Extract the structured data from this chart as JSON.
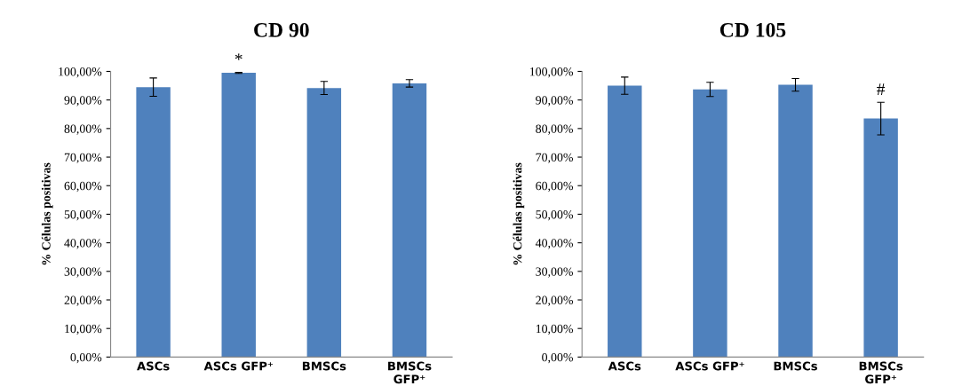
{
  "chart_data": [
    {
      "type": "bar",
      "title": "CD 90",
      "ylabel": "% Células positivas",
      "categories": [
        "ASCs",
        "ASCs GFP⁺",
        "BMSCs",
        "BMSCs\nGFP⁺"
      ],
      "values": [
        94.5,
        99.5,
        94.2,
        95.8
      ],
      "errors": [
        3.2,
        0.2,
        2.3,
        1.3
      ],
      "color": "#4f81bd",
      "ylim": [
        0,
        100
      ],
      "yticks": [
        {
          "value": 0,
          "label": "0,00%"
        },
        {
          "value": 10,
          "label": "10,00%"
        },
        {
          "value": 20,
          "label": "20,00%"
        },
        {
          "value": 30,
          "label": "30,00%"
        },
        {
          "value": 40,
          "label": "40,00%"
        },
        {
          "value": 50,
          "label": "50,00%"
        },
        {
          "value": 60,
          "label": "60,00%"
        },
        {
          "value": 70,
          "label": "70,00%"
        },
        {
          "value": 80,
          "label": "80,00%"
        },
        {
          "value": 90,
          "label": "90,00%"
        },
        {
          "value": 100,
          "label": "100,00%"
        }
      ],
      "grid": false,
      "legend": false,
      "annotations": [
        {
          "text": "*",
          "x": "ASCs GFP⁺",
          "y": 99.7
        }
      ]
    },
    {
      "type": "bar",
      "title": "CD 105",
      "ylabel": "% Células positivas",
      "categories": [
        "ASCs",
        "ASCs GFP⁺",
        "BMSCs",
        "BMSCs\nGFP⁺"
      ],
      "values": [
        95.0,
        93.7,
        95.3,
        83.5
      ],
      "errors": [
        3.0,
        2.5,
        2.2,
        5.7
      ],
      "color": "#4f81bd",
      "ylim": [
        0,
        100
      ],
      "yticks": [
        {
          "value": 0,
          "label": "0,00%"
        },
        {
          "value": 10,
          "label": "10,00%"
        },
        {
          "value": 20,
          "label": "20,00%"
        },
        {
          "value": 30,
          "label": "30,00%"
        },
        {
          "value": 40,
          "label": "40,00%"
        },
        {
          "value": 50,
          "label": "50,00%"
        },
        {
          "value": 60,
          "label": "60,00%"
        },
        {
          "value": 70,
          "label": "70,00%"
        },
        {
          "value": 80,
          "label": "80,00%"
        },
        {
          "value": 90,
          "label": "90,00%"
        },
        {
          "value": 100,
          "label": "100,00%"
        }
      ],
      "grid": false,
      "legend": false,
      "annotations": [
        {
          "text": "#",
          "x": "BMSCs\nGFP⁺",
          "y": 89.2
        }
      ]
    }
  ]
}
